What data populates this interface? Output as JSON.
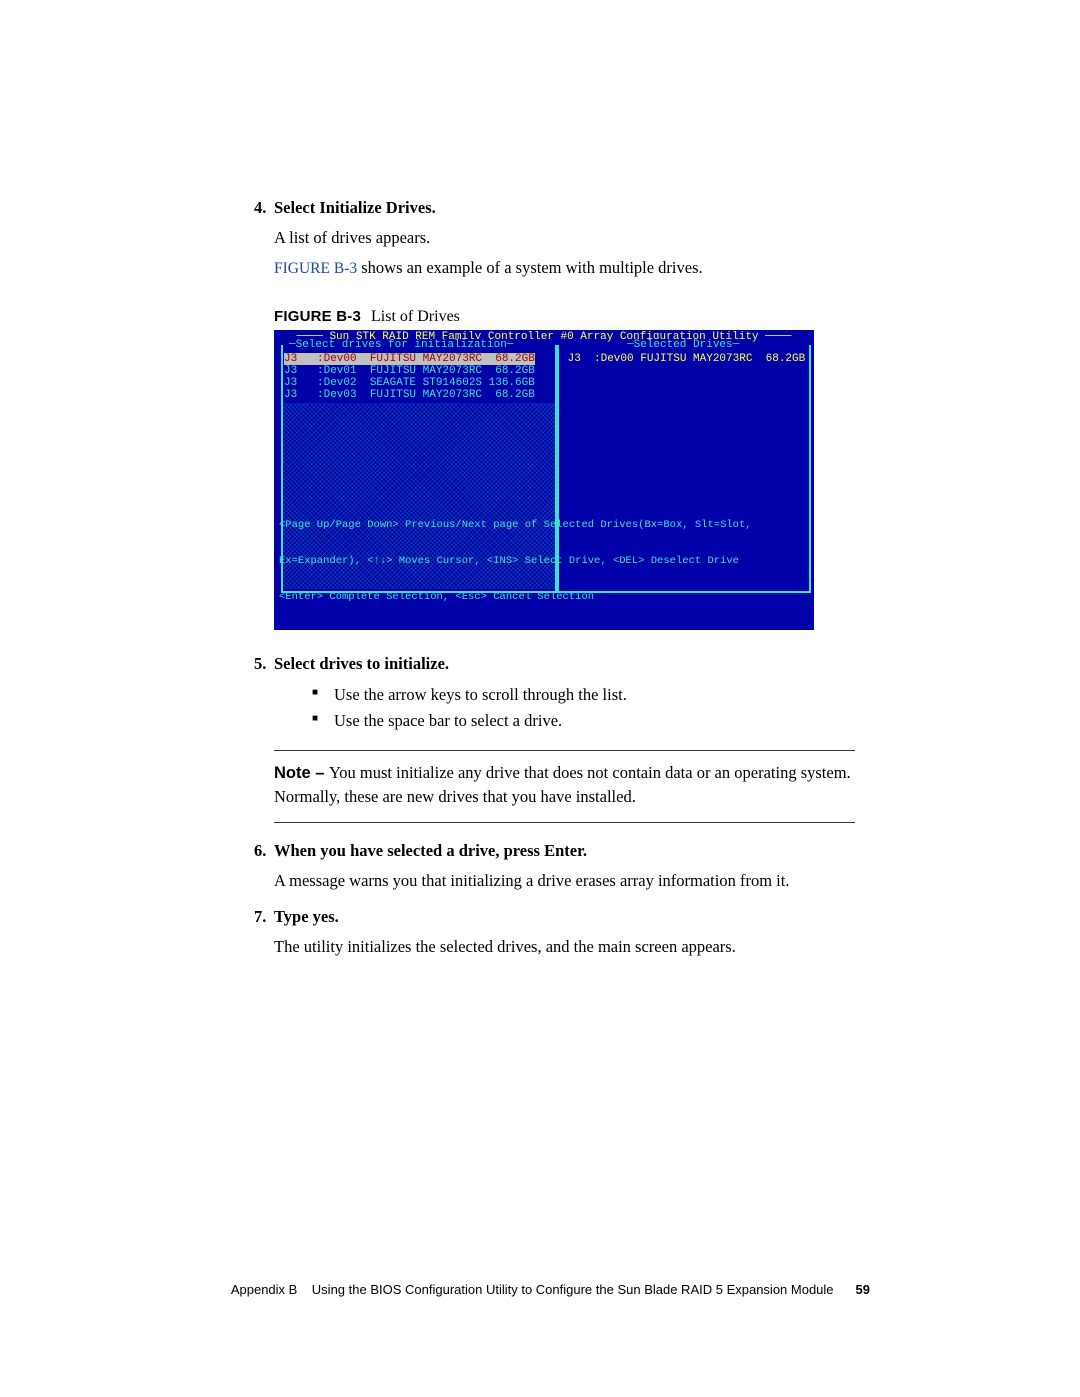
{
  "steps": {
    "s4": {
      "num": "4.",
      "title": "Select Initialize Drives.",
      "line1": "A list of drives appears.",
      "figref": "FIGURE B-3",
      "line2_rest": " shows an example of a system with multiple drives."
    },
    "s5": {
      "num": "5.",
      "title": "Select drives to initialize.",
      "b1": "Use the arrow keys to scroll through the list.",
      "b2": "Use the space bar to select a drive."
    },
    "s6": {
      "num": "6.",
      "title": "When you have selected a drive, press Enter.",
      "line": "A message warns you that initializing a drive erases array information from it."
    },
    "s7": {
      "num": "7.",
      "title": "Type yes.",
      "line": "The utility initializes the selected drives, and the main screen appears."
    }
  },
  "figure": {
    "label_bold": "FIGURE B-3",
    "label_text": "List of Drives"
  },
  "bios": {
    "title": "──── Sun STK RAID REM Family Controller #0 Array Configuration Utility ────",
    "left_header": "─Select drives for initialization─",
    "right_header": "─Selected Drives─",
    "left_rows": [
      {
        "text": "J3   :Dev00  FUJITSU MAY2073RC  68.2GB",
        "selected": true
      },
      {
        "text": "J3   :Dev01  FUJITSU MAY2073RC  68.2GB",
        "selected": false
      },
      {
        "text": "J3   :Dev02  SEAGATE ST914602S 136.6GB",
        "selected": false
      },
      {
        "text": "J3   :Dev03  FUJITSU MAY2073RC  68.2GB",
        "selected": false
      }
    ],
    "right_rows": [
      " J3  :Dev00 FUJITSU MAY2073RC  68.2GB"
    ],
    "help1": "<Page Up/Page Down> Previous/Next page of Selected Drives(Bx=Box, Slt=Slot,",
    "help2": "Ex=Expander), <↑↓> Moves Cursor, <INS> Select Drive, <DEL> Deselect Drive",
    "help3": "<Enter> Complete Selection, <Esc> Cancel Selection",
    "colors": {
      "bg": "#0000a8",
      "text_bright": "#ffff55",
      "text_cyan": "#40e0d0",
      "sel_bg": "#c0c0c0",
      "sel_fg": "#a00000"
    }
  },
  "note": {
    "label": "Note – ",
    "text": "You must initialize any drive that does not contain data or an operating system. Normally, these are new drives that you have installed."
  },
  "footer": {
    "appendix": "Appendix B",
    "title": "Using the BIOS Configuration Utility to Configure the Sun Blade RAID 5 Expansion Module",
    "page": "59"
  }
}
